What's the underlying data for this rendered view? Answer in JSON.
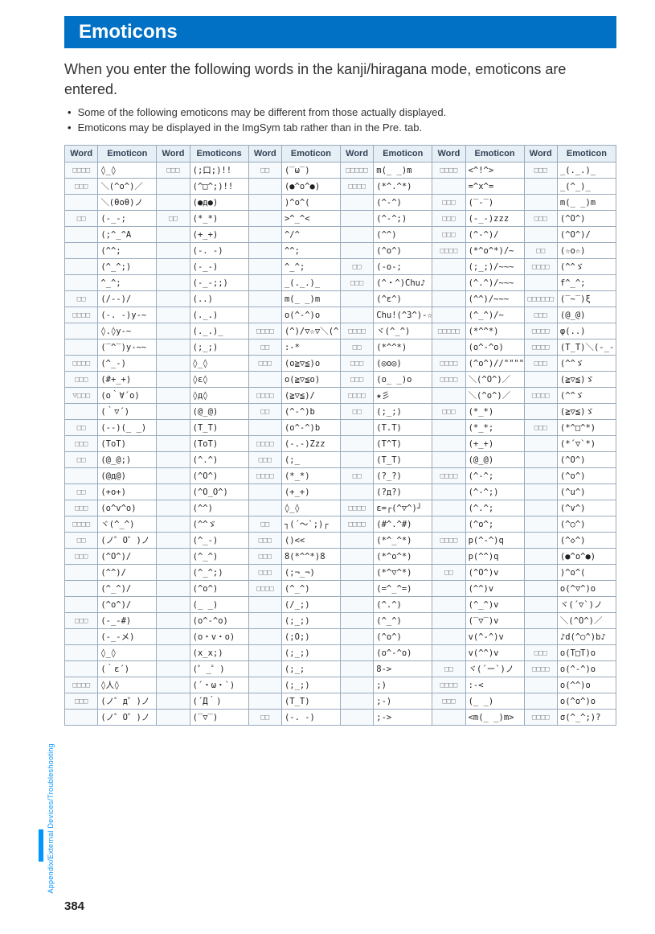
{
  "title": "Emoticons",
  "intro": "When you enter the following words in the kanji/hiragana mode, emoticons are entered.",
  "bullets": [
    "Some of the following emoticons may be different from those actually displayed.",
    "Emoticons may be displayed in the ImgSym tab rather than in the Pre. tab."
  ],
  "headers": [
    "Word",
    "Emoticon",
    "Word",
    "Emoticons",
    "Word",
    "Emoticon",
    "Word",
    "Emoticon",
    "Word",
    "Emoticon",
    "Word",
    "Emoticon"
  ],
  "rows": [
    [
      "□□□□",
      "◊_◊",
      "□□□",
      "(;口;)!!",
      "□□",
      "(‾ω‾)",
      "□□□□□",
      "m(_ _)m",
      "□□□□",
      "<^!^>",
      "□□□",
      "_(._.)_ "
    ],
    [
      "□□□",
      "＼(^o^)／",
      "",
      "(^□^;)!!",
      "",
      "(●^o^●)",
      "□□□□",
      "(*^.^*)",
      "",
      "=^x^=",
      "",
      "_(^_)_ "
    ],
    [
      "",
      "＼(θoθ)ノ",
      "",
      "(●д●)",
      "",
      ")^o^(",
      "",
      "(^-^)",
      "□□□",
      "(‾-‾)",
      "",
      "m(_ _)m"
    ],
    [
      "□□",
      "(-_-;",
      "□□",
      "(*_*)",
      "",
      ">^_^<",
      "",
      "(^-^;)",
      "□□□",
      "(-_-)zzz",
      "□□□",
      "(^O^)"
    ],
    [
      "",
      "(;^_^A",
      "",
      "(+_+)",
      "",
      "^/^",
      "",
      "(^^)",
      "□□□",
      "(^-^)/",
      "",
      "(^O^)/"
    ],
    [
      "",
      "(^^;",
      "",
      "(-. -)",
      "",
      "^^;",
      "",
      "(^o^)",
      "□□□□",
      "(*^o^*)/~",
      "□□",
      "(☆o☆)"
    ],
    [
      "",
      "(^_^;)",
      "",
      "(-_-)",
      "",
      "^_^;",
      "□□",
      "(-o-;",
      "",
      "(;_;)/~~~",
      "□□□□",
      "(^^ゞ"
    ],
    [
      "",
      "^_^;",
      "",
      "(-_-;;)",
      "",
      "_(._.)_ ",
      "□□□",
      "(^・^)Chu♪",
      "",
      "(^.^)/~~~",
      "",
      "f^_^;"
    ],
    [
      "□□",
      "(/--)/",
      "",
      "(..)",
      "",
      "m(_ _)m",
      "",
      "(^ε^)",
      "",
      "(^^)/~~~",
      "□□□□□□",
      "(‾~‾)ξ"
    ],
    [
      "□□□□",
      "(-. -)y-~",
      "",
      "(._.)",
      "",
      "o(^-^)o",
      "",
      "Chu!(^3^)-☆",
      "",
      "(^_^)/~",
      "□□□",
      "(@_@)"
    ],
    [
      "",
      "◊.◊y-~",
      "",
      "(._.)_",
      "□□□□",
      "(^)/▽☆▽＼(^)",
      "□□□□",
      "ヾ(^_^)",
      "□□□□□",
      "(*^^*)",
      "□□□□",
      "φ(..)"
    ],
    [
      "",
      "(‾^‾)y-~~",
      "",
      "(;_;)",
      "□□",
      ":-*",
      "□□",
      "(*^^*)",
      "",
      "(o^-^o)",
      "□□□□",
      "(T_T)＼(-_-)"
    ],
    [
      "□□□□",
      "(^_-)",
      "",
      "◊_◊",
      "□□□",
      "(o≧▽≦)o",
      "□□□",
      "(◎o◎)",
      "□□□□",
      "(^o^)//\"\"\"\"\"\"",
      "□□□",
      "(^^ゞ"
    ],
    [
      "□□□",
      "(#+_+)",
      "",
      "◊ε◊",
      "",
      "o(≧▽≦o)",
      "□□□",
      "(o_ _)o",
      "□□□□",
      "＼(^O^)／",
      "",
      "(≧▽≦)ゞ"
    ],
    [
      "▽□□□",
      "(o｀∀´o)",
      "",
      "◊д◊",
      "□□□□",
      "(≧▽≦)/",
      "□□□□",
      "★彡",
      "",
      "＼(^o^)／",
      "□□□□",
      "(^^ゞ"
    ],
    [
      "",
      "(｀▽´)",
      "",
      "(@_@)",
      "□□",
      "(^-^)b",
      "□□",
      "(;_;)",
      "□□□",
      "(*_*)",
      "",
      "(≧▽≦)ゞ"
    ],
    [
      "□□",
      "(--)(_ _)",
      "",
      "(T_T)",
      "",
      "(o^-^)b",
      "",
      "(T.T)",
      "",
      "(*_*;",
      "□□□",
      "(*^□^*)"
    ],
    [
      "□□□",
      "(ToT)",
      "",
      "(ToT)",
      "□□□□",
      "(-.-)Zzz",
      "",
      "(T^T)",
      "",
      "(+_+)",
      "",
      "(*´▽`*)"
    ],
    [
      "□□",
      "(@_@;)",
      "",
      "(^.^)",
      "□□□",
      "(;_",
      "",
      "(T_T)",
      "",
      "(@_@)",
      "",
      "(^O^)"
    ],
    [
      "",
      "(@д@)",
      "",
      "(^O^)",
      "□□□□",
      "(*_*)",
      "□□",
      "(?_?)",
      "□□□□",
      "(^-^;",
      "",
      "(^o^)"
    ],
    [
      "□□",
      "(+o+)",
      "",
      "(^O_O^)",
      "",
      "(+_+)",
      "",
      "(?д?)",
      "",
      "(^-^;)",
      "",
      "(^u^)"
    ],
    [
      "□□□",
      "(o^v^o)",
      "",
      "(^^)",
      "",
      "◊_◊",
      "□□□□",
      "ε=┌(^▽^)┘",
      "",
      "(^.^;",
      "",
      "(^v^)"
    ],
    [
      "□□□□",
      "ヾ(^_^)",
      "",
      "(^^ゞ",
      "□□",
      "┐(´～`;)┌",
      "□□□□",
      "(#^.^#)",
      "",
      "(^o^;",
      "",
      "(^○^)"
    ],
    [
      "□□",
      "(ノ゜O゜)ノ",
      "",
      "(^_-)",
      "□□□",
      "()<<",
      "",
      "(*^_^*)",
      "□□□□",
      "p(^-^)q",
      "",
      "(^◇^)"
    ],
    [
      "□□□",
      "(^O^)/",
      "",
      "(^_^)",
      "□□□",
      "8(*^^*)8",
      "",
      "(*^o^*)",
      "",
      "p(^^)q",
      "",
      "(●^o^●)"
    ],
    [
      "",
      "(^^)/",
      "",
      "(^_^;)",
      "□□□",
      "(;¬_¬)",
      "",
      "(*^▽^*)",
      "□□",
      "(^O^)v",
      "",
      ")^o^("
    ],
    [
      "",
      "(^_^)/",
      "",
      "(^o^)",
      "□□□□",
      "(^_^)",
      "",
      "(=^_^=)",
      "",
      "(^^)v",
      "",
      "o(^▽^)o"
    ],
    [
      "",
      "(^o^)/",
      "",
      "(_ _)",
      "",
      "(/_;)",
      "",
      "(^.^)",
      "",
      "(^_^)v",
      "",
      "ヾ(´▽`)ノ"
    ],
    [
      "□□□",
      "(-_-#)",
      "",
      "(o^-^o)",
      "",
      "(;_;)",
      "",
      "(^_^)",
      "",
      "(‾▽‾)v",
      "",
      "＼(^O^)／"
    ],
    [
      "",
      "(-_-メ)",
      "",
      "(o・v・o)",
      "",
      "(;O;)",
      "",
      "(^o^)",
      "",
      "v(^-^)v",
      "",
      "♪d(^○^)b♪"
    ],
    [
      "",
      "◊_◊",
      "",
      "(x_x;)",
      "",
      "(;_;)",
      "",
      "(o^-^o)",
      "",
      "v(^^)v",
      "□□□",
      "o(T□T)o"
    ],
    [
      "",
      "(｀ε´)",
      "",
      "(゜_゜)",
      "",
      "(;_;",
      "",
      "8->",
      "□□",
      "ヾ(´ー`)ノ",
      "□□□□",
      "o(^-^)o"
    ],
    [
      "□□□□",
      "◊人◊",
      "",
      "(´・ω・`)",
      "",
      "(;_;)",
      "",
      ";)",
      "□□□□",
      ":-<",
      "",
      "o(^^)o"
    ],
    [
      "□□□",
      "(ノ゜д゜)ノ",
      "",
      "(´Д｀)",
      "",
      "(T_T)",
      "",
      ";-)",
      "□□□",
      "(_ _)",
      "",
      "o(^o^)o"
    ],
    [
      "",
      "(ノ゜O゜)ノ",
      "",
      "(‾▽‾)",
      "□□",
      "(-. -)",
      "",
      ";->",
      "",
      "<m(_ _)m>",
      "□□□□",
      "σ(^_^;)?"
    ]
  ],
  "side_text": "Appendix/External Devices/Troubleshooting",
  "page_number": "384",
  "colors": {
    "header_bg": "#0071c5",
    "th_bg": "#e6eef6",
    "border": "#99aabb",
    "accent": "#0095ff"
  }
}
